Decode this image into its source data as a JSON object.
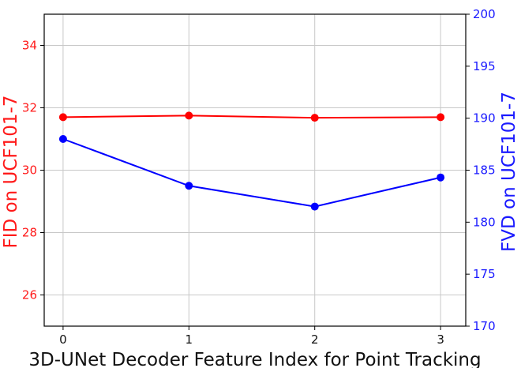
{
  "chart_data": {
    "type": "line",
    "x": [
      0,
      1,
      2,
      3
    ],
    "xlabel": "3D-UNet Decoder Feature Index for Point Tracking",
    "x_ticks": [
      "0",
      "1",
      "2",
      "3"
    ],
    "xlim": [
      -0.15,
      3.2
    ],
    "y_left": {
      "label": "FID on UCF101-7",
      "color": "#ff0000",
      "ylim": [
        25,
        35
      ],
      "ticks": [
        26,
        28,
        30,
        32,
        34
      ]
    },
    "y_right": {
      "label": "FVD on UCF101-7",
      "color": "#0000ff",
      "ylim": [
        170,
        200
      ],
      "ticks": [
        170,
        175,
        180,
        185,
        190,
        195,
        200
      ]
    },
    "series": [
      {
        "axis": "left",
        "color": "#ff0000",
        "values": [
          31.7,
          31.75,
          31.68,
          31.7
        ]
      },
      {
        "axis": "right",
        "color": "#0000ff",
        "values": [
          188.0,
          183.5,
          181.5,
          184.3
        ]
      }
    ],
    "grid": true
  }
}
